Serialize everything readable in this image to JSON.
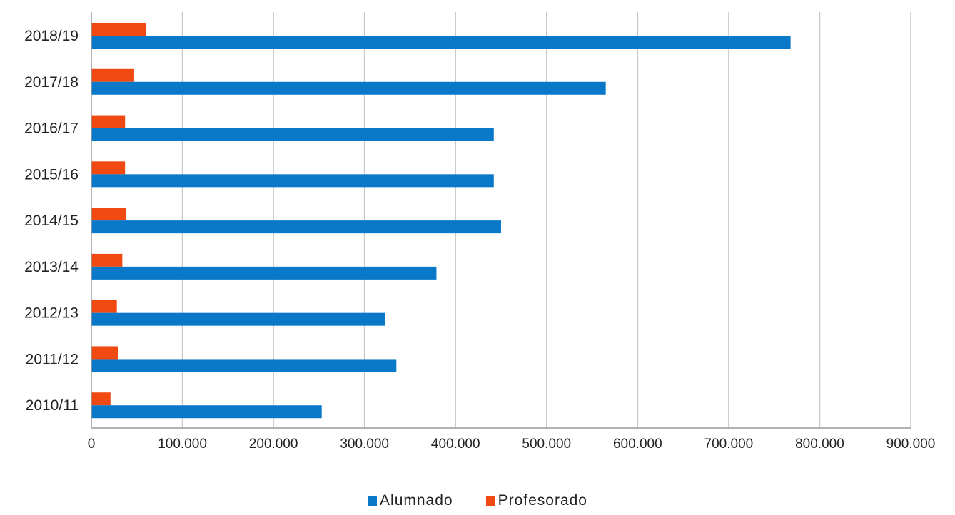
{
  "chart_data": {
    "type": "bar",
    "orientation": "horizontal",
    "categories": [
      "2018/19",
      "2017/18",
      "2016/17",
      "2015/16",
      "2014/15",
      "2013/14",
      "2012/13",
      "2011/12",
      "2010/11"
    ],
    "series": [
      {
        "name": "Alumnado",
        "color": "#0a78c8",
        "values": [
          768000,
          565000,
          442000,
          442000,
          450000,
          379000,
          323000,
          335000,
          253000
        ]
      },
      {
        "name": "Profesorado",
        "color": "#f04a12",
        "values": [
          60000,
          47000,
          37000,
          37000,
          38000,
          34000,
          28000,
          29000,
          21000
        ]
      }
    ],
    "xlim": [
      0,
      900000
    ],
    "xticks": [
      0,
      100000,
      200000,
      300000,
      400000,
      500000,
      600000,
      700000,
      800000,
      900000
    ],
    "xtick_labels": [
      "0",
      "100.000",
      "200.000",
      "300.000",
      "400.000",
      "500.000",
      "600.000",
      "700.000",
      "800.000",
      "900.000"
    ],
    "grid": true,
    "legend_position": "bottom-center"
  }
}
